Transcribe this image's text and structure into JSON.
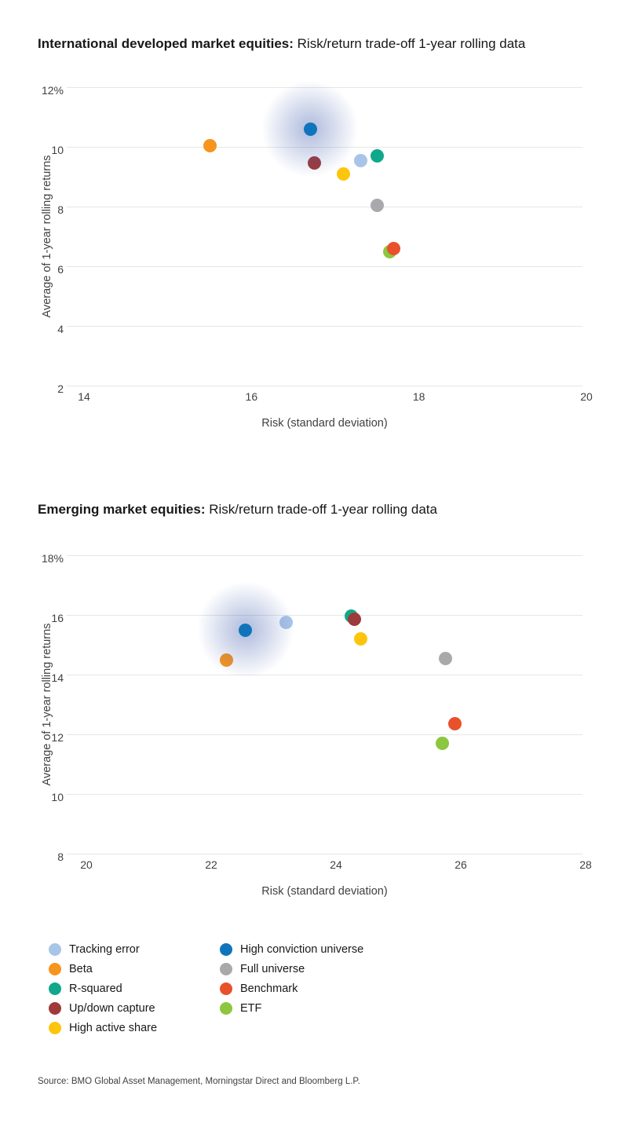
{
  "page": {
    "source": "Source: BMO Global Asset Management, Morningstar Direct and Bloomberg L.P."
  },
  "colors": {
    "Tracking error": "#a8c4e8",
    "Beta": "#f7941e",
    "R-squared": "#10a88a",
    "Up/down capture": "#9e3a3a",
    "High active share": "#fdc50d",
    "High conviction universe": "#0f74bb",
    "Full universe": "#a9a9ab",
    "Benchmark": "#e8512a",
    "ETF": "#8dc63f",
    "glow": "#3e5cad",
    "gridline": "#e6e6e6",
    "text": "#181818",
    "tick_text": "#414042"
  },
  "chart_data": [
    {
      "type": "scatter",
      "title_bold": "International developed market equities:",
      "title_regular": " Risk/return trade-off 1-year rolling data",
      "xlabel": "Risk (standard deviation)",
      "ylabel": "Average of 1-year rolling returns",
      "xlim": [
        14,
        20
      ],
      "ylim": [
        2,
        12
      ],
      "grid": true,
      "legend_position": "below-shared",
      "x_ticks": [
        14,
        16,
        18,
        20
      ],
      "y_ticks": [
        {
          "value": 12,
          "label": "12%"
        },
        {
          "value": 10,
          "label": "10"
        },
        {
          "value": 8,
          "label": "8"
        },
        {
          "value": 6,
          "label": "6"
        },
        {
          "value": 4,
          "label": "4"
        },
        {
          "value": 2,
          "label": "2"
        }
      ],
      "points": [
        {
          "series": "Beta",
          "x": 15.5,
          "y": 10.05
        },
        {
          "series": "Tracking error",
          "x": 17.3,
          "y": 9.55
        },
        {
          "series": "R-squared",
          "x": 17.5,
          "y": 9.7
        },
        {
          "series": "Up/down capture",
          "x": 16.75,
          "y": 9.45
        },
        {
          "series": "High active share",
          "x": 17.1,
          "y": 9.1
        },
        {
          "series": "Full universe",
          "x": 17.5,
          "y": 8.05
        },
        {
          "series": "ETF",
          "x": 17.65,
          "y": 6.5
        },
        {
          "series": "Benchmark",
          "x": 17.7,
          "y": 6.6
        },
        {
          "series": "High conviction universe",
          "x": 16.7,
          "y": 10.6,
          "glow": true
        }
      ]
    },
    {
      "type": "scatter",
      "title_bold": "Emerging market equities:",
      "title_regular": " Risk/return trade-off 1-year rolling data",
      "xlabel": "Risk (standard deviation)",
      "ylabel": "Average of 1-year rolling returns",
      "xlim": [
        20,
        28
      ],
      "ylim": [
        8,
        18
      ],
      "grid": true,
      "legend_position": "below-shared",
      "x_ticks": [
        20,
        22,
        24,
        26,
        28
      ],
      "y_ticks": [
        {
          "value": 18,
          "label": "18%"
        },
        {
          "value": 16,
          "label": "16"
        },
        {
          "value": 14,
          "label": "14"
        },
        {
          "value": 12,
          "label": "12"
        },
        {
          "value": 10,
          "label": "10"
        },
        {
          "value": 8,
          "label": "8"
        }
      ],
      "points": [
        {
          "series": "Beta",
          "x": 22.25,
          "y": 14.5
        },
        {
          "series": "Tracking error",
          "x": 23.2,
          "y": 15.75
        },
        {
          "series": "R-squared",
          "x": 24.25,
          "y": 15.95
        },
        {
          "series": "Up/down capture",
          "x": 24.3,
          "y": 15.85
        },
        {
          "series": "High active share",
          "x": 24.4,
          "y": 15.2
        },
        {
          "series": "Full universe",
          "x": 25.75,
          "y": 14.55
        },
        {
          "series": "ETF",
          "x": 25.7,
          "y": 11.7
        },
        {
          "series": "Benchmark",
          "x": 25.9,
          "y": 12.35
        },
        {
          "series": "High conviction universe",
          "x": 22.55,
          "y": 15.5,
          "glow": true
        }
      ]
    }
  ],
  "legend": {
    "columns": [
      [
        {
          "label": "Tracking error",
          "color": "#a8c4e8"
        },
        {
          "label": "Beta",
          "color": "#f7941e"
        },
        {
          "label": "R-squared",
          "color": "#10a88a"
        },
        {
          "label": "Up/down capture",
          "color": "#9e3a3a"
        },
        {
          "label": "High active share",
          "color": "#fdc50d"
        }
      ],
      [
        {
          "label": "High conviction universe",
          "color": "#0f74bb"
        },
        {
          "label": "Full universe",
          "color": "#a9a9ab"
        },
        {
          "label": "Benchmark",
          "color": "#e8512a"
        },
        {
          "label": "ETF",
          "color": "#8dc63f"
        }
      ]
    ]
  }
}
